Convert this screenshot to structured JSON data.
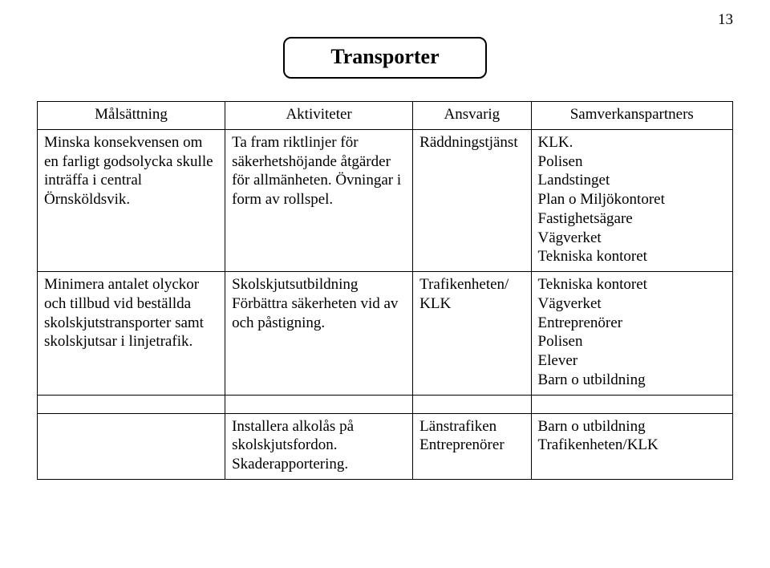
{
  "page_number": "13",
  "title": "Transporter",
  "columns": [
    "Målsättning",
    "Aktiviteter",
    "Ansvarig",
    "Samverkanspartners"
  ],
  "rows": [
    {
      "goal": "Minska konsekvensen om en farligt godsolycka skulle inträffa i central Örnsköldsvik.",
      "activity": "Ta fram riktlinjer för säkerhetshöjande åtgärder för allmänheten. Övningar i form av rollspel.",
      "responsible": "Räddningstjänst",
      "partners": "KLK.\nPolisen\nLandstinget\nPlan o Miljökontoret\nFastighetsägare\nVägverket\nTekniska kontoret"
    },
    {
      "goal": "Minimera antalet olyckor och tillbud vid beställda skolskjutstransporter samt skolskjutsar i linjetrafik.",
      "activity": "Skolskjutsutbildning Förbättra säkerheten vid av och påstigning.",
      "responsible": "Trafikenheten/ KLK",
      "partners": "Tekniska kontoret\nVägverket\nEntreprenörer\nPolisen\nElever\nBarn o utbildning"
    },
    {
      "goal": "",
      "activity": "Installera alkolås på skolskjutsfordon. Skaderapportering.",
      "responsible": "Länstrafiken Entreprenörer",
      "partners": "Barn o utbildning\nTrafikenheten/KLK"
    }
  ]
}
